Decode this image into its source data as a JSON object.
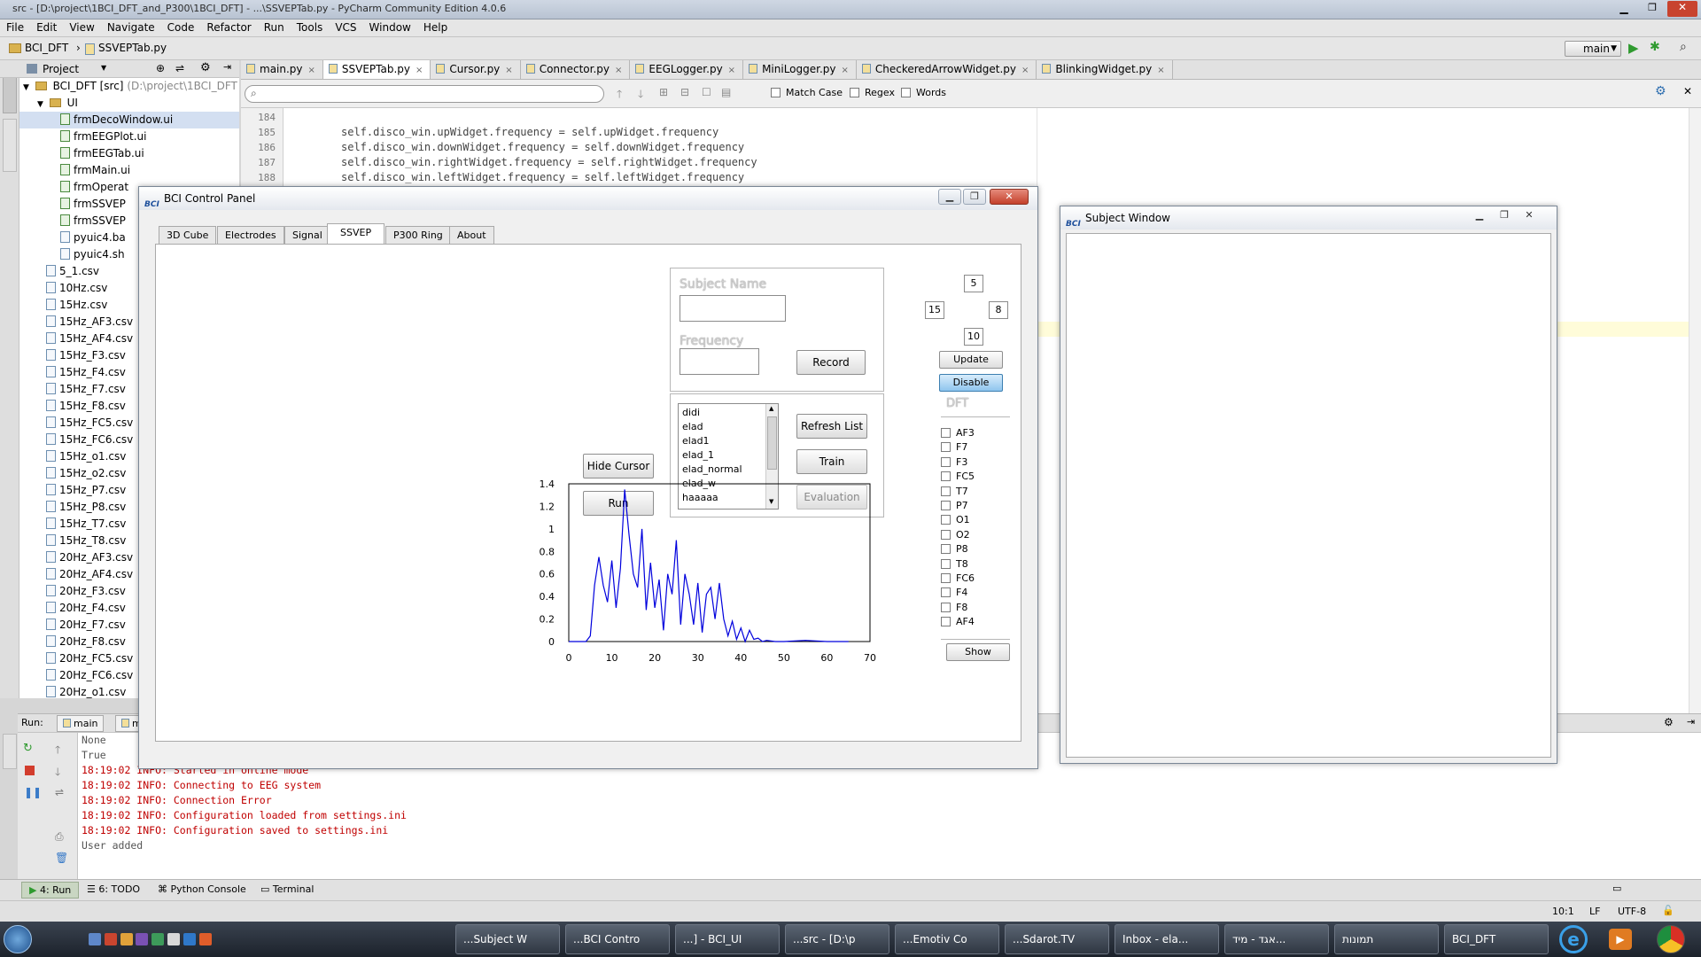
{
  "ide": {
    "title": "src - [D:\\project\\1BCI_DFT_and_P300\\1BCI_DFT] - ...\\SSVEPTab.py - PyCharm Community Edition 4.0.6",
    "menu": [
      "File",
      "Edit",
      "View",
      "Navigate",
      "Code",
      "Refactor",
      "Run",
      "Tools",
      "VCS",
      "Window",
      "Help"
    ],
    "breadcrumb": [
      "BCI_DFT",
      "SSVEPTab.py"
    ],
    "run_config": "main",
    "project_label": "Project",
    "project_root": "BCI_DFT [src]",
    "project_root_path": "(D:\\project\\1BCI_DFT",
    "folder_ui": "UI",
    "tree_items": [
      "frmDecoWindow.ui",
      "frmEEGPlot.ui",
      "frmEEGTab.ui",
      "frmMain.ui",
      "frmOperat",
      "frmSSVEP",
      "frmSSVEP",
      "pyuic4.ba",
      "pyuic4.sh",
      "5_1.csv",
      "10Hz.csv",
      "15Hz.csv",
      "15Hz_AF3.csv",
      "15Hz_AF4.csv",
      "15Hz_F3.csv",
      "15Hz_F4.csv",
      "15Hz_F7.csv",
      "15Hz_F8.csv",
      "15Hz_FC5.csv",
      "15Hz_FC6.csv",
      "15Hz_o1.csv",
      "15Hz_o2.csv",
      "15Hz_P7.csv",
      "15Hz_P8.csv",
      "15Hz_T7.csv",
      "15Hz_T8.csv",
      "20Hz_AF3.csv",
      "20Hz_AF4.csv",
      "20Hz_F3.csv",
      "20Hz_F4.csv",
      "20Hz_F7.csv",
      "20Hz_F8.csv",
      "20Hz_FC5.csv",
      "20Hz_FC6.csv",
      "20Hz_o1.csv"
    ],
    "editor_tabs": [
      "main.py",
      "SSVEPTab.py",
      "Cursor.py",
      "Connector.py",
      "EEGLogger.py",
      "MiniLogger.py",
      "CheckeredArrowWidget.py",
      "BlinkingWidget.py"
    ],
    "active_tab": "SSVEPTab.py",
    "search": {
      "placeholder": "",
      "match_case": "Match Case",
      "regex": "Regex",
      "words": "Words"
    },
    "line_numbers": [
      "184",
      "185",
      "186",
      "187",
      "188"
    ],
    "code_lines": [
      "",
      "self.disco_win.upWidget.frequency = self.upWidget.frequency",
      "self.disco_win.downWidget.frequency = self.downWidget.frequency",
      "self.disco_win.rightWidget.frequency = self.rightWidget.frequency",
      "self.disco_win.leftWidget.frequency = self.leftWidget.frequency"
    ],
    "run_label": "Run:",
    "run_tabs": [
      "main",
      "ma"
    ],
    "console_lines": [
      {
        "text": "None",
        "color": "#555555"
      },
      {
        "text": "True",
        "color": "#555555"
      },
      {
        "text": "18:19:02 INFO: Started in online mode",
        "color": "#c00000"
      },
      {
        "text": "18:19:02 INFO: Connecting to EEG system",
        "color": "#c00000"
      },
      {
        "text": "18:19:02 INFO: Connection Error",
        "color": "#c00000"
      },
      {
        "text": "18:19:02 INFO: Configuration loaded from settings.ini",
        "color": "#c00000"
      },
      {
        "text": "18:19:02 INFO: Configuration saved to settings.ini",
        "color": "#c00000"
      },
      {
        "text": "User added",
        "color": "#555555"
      }
    ],
    "bottom_tools": [
      "4: Run",
      "6: TODO",
      "Python Console",
      "Terminal"
    ],
    "status_right": [
      "10:1",
      "LF",
      "UTF-8"
    ]
  },
  "bci": {
    "title": "BCI Control Panel",
    "logo": "BCI",
    "tabs": [
      "3D Cube",
      "Electrodes",
      "Signal",
      "SSVEP",
      "P300 Ring",
      "About"
    ],
    "active_tab": "SSVEP",
    "subject_name_label": "Subject Name",
    "frequency_label": "Frequency",
    "record_label": "Record",
    "subjects": [
      "didi",
      "elad",
      "elad1",
      "elad_1",
      "elad_normal",
      "elad_w",
      "haaaaa"
    ],
    "refresh_label": "Refresh List",
    "train_label": "Train",
    "evaluation_label": "Evaluation",
    "hide_cursor_label": "Hide Cursor",
    "run_label": "Run",
    "freq_up": "5",
    "freq_left": "15",
    "freq_right": "8",
    "freq_down": "10",
    "update_label": "Update",
    "disable_label": "Disable",
    "dft_label": "DFT",
    "electrodes": [
      "AF3",
      "F7",
      "F3",
      "FC5",
      "T7",
      "P7",
      "O1",
      "O2",
      "P8",
      "T8",
      "FC6",
      "F4",
      "F8",
      "AF4"
    ],
    "show_label": "Show"
  },
  "chart_data": {
    "type": "line",
    "title": "",
    "xlabel": "",
    "ylabel": "",
    "xlim": [
      0,
      70
    ],
    "ylim": [
      0,
      1.4
    ],
    "x_ticks": [
      "0",
      "10",
      "20",
      "30",
      "40",
      "50",
      "60",
      "70"
    ],
    "y_ticks": [
      "1.4",
      "1.2",
      "1",
      "0.8",
      "0.6",
      "0.4",
      "0.2",
      "0"
    ],
    "grid": false,
    "line_color": "#0000dd",
    "x": [
      0,
      4,
      5,
      6,
      7,
      8,
      9,
      10,
      11,
      12,
      13,
      14,
      15,
      16,
      17,
      18,
      19,
      20,
      21,
      22,
      23,
      24,
      25,
      26,
      27,
      28,
      29,
      30,
      31,
      32,
      33,
      34,
      35,
      36,
      37,
      38,
      39,
      40,
      41,
      42,
      43,
      44,
      45,
      46,
      48,
      50,
      55,
      60,
      65
    ],
    "y": [
      0,
      0,
      0.05,
      0.5,
      0.75,
      0.5,
      0.35,
      0.72,
      0.3,
      0.65,
      1.35,
      0.95,
      0.6,
      0.48,
      1.0,
      0.28,
      0.7,
      0.3,
      0.55,
      0.1,
      0.6,
      0.42,
      0.9,
      0.15,
      0.6,
      0.42,
      0.15,
      0.52,
      0.08,
      0.42,
      0.48,
      0.2,
      0.52,
      0.2,
      0.05,
      0.18,
      0.02,
      0.12,
      0.0,
      0.1,
      0.02,
      0.03,
      0.0,
      0.01,
      0.0,
      0.0,
      0.01,
      0.0,
      0.0
    ]
  },
  "subject_window": {
    "title": "Subject Window",
    "logo": "BCI"
  },
  "taskbar": {
    "buttons": [
      "...Subject W",
      "...BCI Contro",
      "...] - BCI_UI",
      "...src - [D:\\p",
      "...Emotiv Co",
      "...Sdarot.TV",
      "Inbox - ela...",
      "אגד - מיד...",
      "תמונות",
      "BCI_DFT"
    ]
  }
}
